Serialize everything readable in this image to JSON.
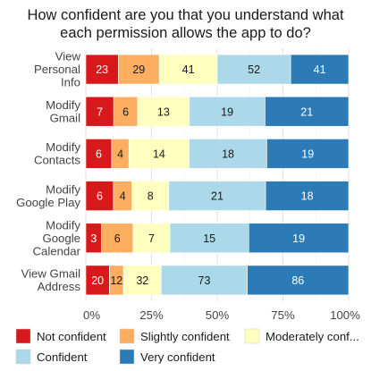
{
  "chart_data": {
    "type": "bar",
    "orientation": "horizontal",
    "stacked": "percent",
    "title": "How confident are you that you understand what each permission allows the app to do?",
    "title_lines": [
      "How confident are you that you understand what",
      "each permission allows the app to do?"
    ],
    "categories": [
      "View Personal Info",
      "Modify Gmail",
      "Modify Contacts",
      "Modify Google Play",
      "Modify Google Calendar",
      "View Gmail Address"
    ],
    "category_lines": [
      [
        "View",
        "Personal",
        "Info"
      ],
      [
        "Modify",
        "Gmail"
      ],
      [
        "Modify",
        "Contacts"
      ],
      [
        "Modify",
        "Google Play"
      ],
      [
        "Modify",
        "Google",
        "Calendar"
      ],
      [
        "View Gmail",
        "Address"
      ]
    ],
    "series": [
      {
        "name": "Not confident",
        "color": "#d7191c",
        "label_color": "#ffffff",
        "values": [
          23,
          7,
          6,
          6,
          3,
          20
        ]
      },
      {
        "name": "Slightly confident",
        "color": "#fdae61",
        "label_color": "#1a1a1a",
        "values": [
          29,
          6,
          4,
          4,
          6,
          12
        ]
      },
      {
        "name": "Moderately confident",
        "color": "#ffffbf",
        "label_color": "#1a1a1a",
        "values": [
          41,
          13,
          14,
          8,
          7,
          32
        ]
      },
      {
        "name": "Confident",
        "color": "#abd9e9",
        "label_color": "#1a1a1a",
        "values": [
          52,
          19,
          18,
          21,
          15,
          73
        ]
      },
      {
        "name": "Very confident",
        "color": "#2c7bb6",
        "label_color": "#ffffff",
        "values": [
          41,
          21,
          19,
          18,
          19,
          86
        ]
      }
    ],
    "legend_labels": [
      "Not confident",
      "Slightly confident",
      "Moderately conf...",
      "Confident",
      "Very confident"
    ],
    "xticks": [
      "0%",
      "25%",
      "50%",
      "75%",
      "100%"
    ],
    "xlim": [
      0,
      1
    ],
    "grid": true,
    "legend_position": "bottom"
  }
}
